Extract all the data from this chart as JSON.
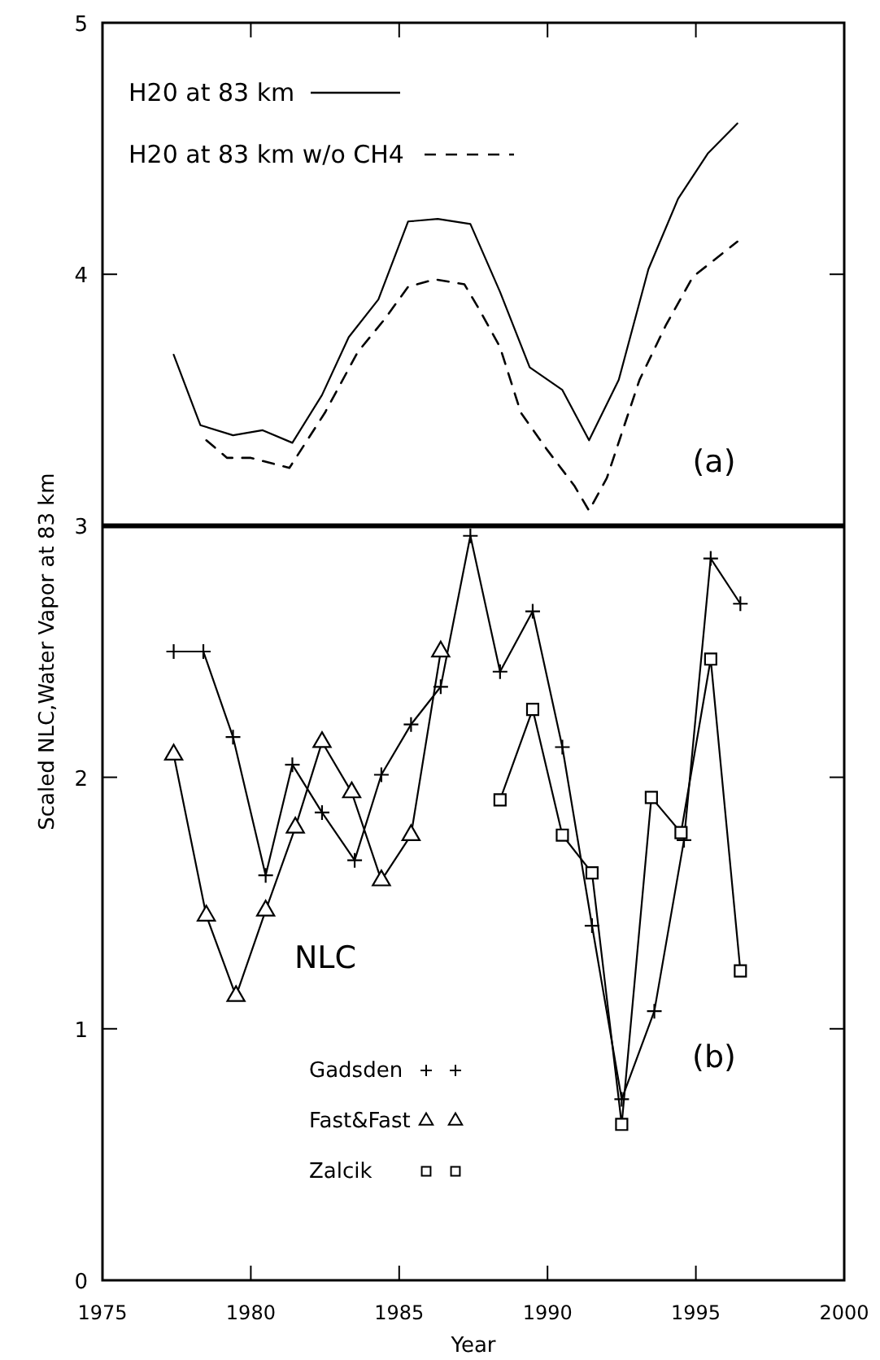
{
  "chart_data": {
    "type": "line",
    "xlabel": "Year",
    "ylabel": "Scaled NLC,Water Vapor at 83 km",
    "xlim": [
      1975,
      2000
    ],
    "xticks": [
      1975,
      1980,
      1985,
      1990,
      1995,
      2000
    ],
    "ylim": [
      0,
      5
    ],
    "yticks": [
      0,
      1,
      2,
      3,
      4,
      5
    ],
    "legend": "top left",
    "grid": false,
    "ref_lines": [
      {
        "axis": "y",
        "value": 3,
        "color": "#000000"
      }
    ],
    "annotations": [
      "(a)",
      "(b)",
      "NLC"
    ],
    "series": [
      {
        "name": "H20 at 83 km",
        "color": "#000000",
        "line_style": "solid",
        "marker": "none",
        "x": [
          1977.4,
          1978.3,
          1979.4,
          1980.4,
          1981.4,
          1982.4,
          1983.3,
          1984.3,
          1985.3,
          1986.3,
          1987.4,
          1988.4,
          1989.4,
          1990.5,
          1991.4,
          1992.4,
          1993.4,
          1994.4,
          1995.4,
          1996.4
        ],
        "values": [
          3.68,
          3.4,
          3.36,
          3.38,
          3.33,
          3.52,
          3.75,
          3.9,
          4.21,
          4.22,
          4.2,
          3.93,
          3.63,
          3.54,
          3.34,
          3.58,
          4.02,
          4.3,
          4.48,
          4.6
        ]
      },
      {
        "name": "H20 at 83 km w/o CH4",
        "color": "#000000",
        "line_style": "dashed",
        "marker": "none",
        "x": [
          1978.5,
          1979.2,
          1980.0,
          1981.3,
          1982.5,
          1983.6,
          1984.5,
          1985.3,
          1986.2,
          1987.2,
          1987.7,
          1988.4,
          1989.1,
          1990.0,
          1990.9,
          1991.4,
          1992.0,
          1993.1,
          1994.0,
          1994.9,
          1996.4
        ],
        "values": [
          3.34,
          3.27,
          3.27,
          3.23,
          3.45,
          3.69,
          3.82,
          3.95,
          3.98,
          3.96,
          3.86,
          3.71,
          3.45,
          3.3,
          3.16,
          3.06,
          3.19,
          3.58,
          3.8,
          3.99,
          4.13
        ]
      },
      {
        "name": "Gadsden",
        "color": "#000000",
        "line_style": "solid",
        "marker": "cross",
        "x": [
          1977.4,
          1978.4,
          1979.4,
          1980.5,
          1981.4,
          1982.4,
          1983.5,
          1984.4,
          1985.4,
          1986.4,
          1987.4,
          1988.4,
          1989.5,
          1990.5,
          1991.5,
          1992.5,
          1993.6,
          1994.6,
          1995.5,
          1996.5
        ],
        "values": [
          2.5,
          2.5,
          2.16,
          1.61,
          2.05,
          1.86,
          1.67,
          2.01,
          2.21,
          2.36,
          2.96,
          2.42,
          2.66,
          2.12,
          1.41,
          0.72,
          1.07,
          1.75,
          2.87,
          2.69
        ]
      },
      {
        "name": "Fast&Fast",
        "color": "#000000",
        "line_style": "solid",
        "marker": "triangle",
        "x": [
          1977.4,
          1978.5,
          1979.5,
          1980.5,
          1981.5,
          1982.4,
          1983.4,
          1984.4,
          1985.4,
          1986.4
        ],
        "values": [
          2.09,
          1.45,
          1.13,
          1.47,
          1.8,
          2.14,
          1.94,
          1.59,
          1.77,
          2.5
        ]
      },
      {
        "name": "Zalcik",
        "color": "#000000",
        "line_style": "solid",
        "marker": "square",
        "x": [
          1988.4,
          1989.5,
          1990.5,
          1991.5,
          1992.5,
          1993.5,
          1994.5,
          1995.5,
          1996.5
        ],
        "values": [
          1.91,
          2.27,
          1.77,
          1.62,
          0.62,
          1.92,
          1.78,
          2.47,
          1.23
        ]
      }
    ]
  }
}
